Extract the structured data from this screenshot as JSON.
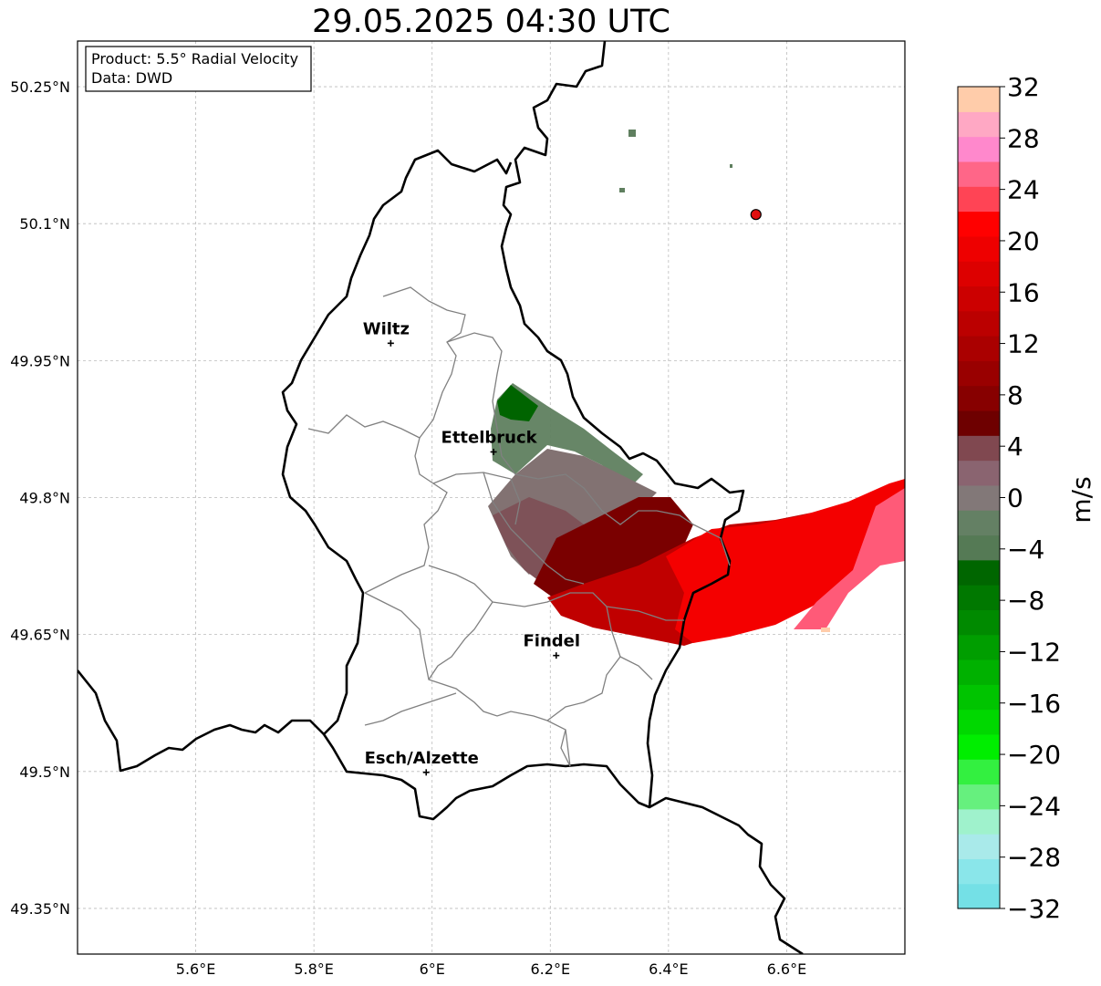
{
  "title": "29.05.2025 04:30 UTC",
  "infobox": {
    "line1": "Product: 5.5° Radial Velocity",
    "line2": "Data: DWD"
  },
  "map": {
    "lon_range": [
      5.4,
      6.8
    ],
    "lat_range": [
      49.3,
      50.3
    ],
    "lon_ticks": [
      {
        "value": 5.6,
        "label": "5.6°E"
      },
      {
        "value": 5.8,
        "label": "5.8°E"
      },
      {
        "value": 6.0,
        "label": "6°E"
      },
      {
        "value": 6.2,
        "label": "6.2°E"
      },
      {
        "value": 6.4,
        "label": "6.4°E"
      },
      {
        "value": 6.6,
        "label": "6.6°E"
      }
    ],
    "lat_ticks": [
      {
        "value": 50.25,
        "label": "50.25°N"
      },
      {
        "value": 50.1,
        "label": "50.1°N"
      },
      {
        "value": 49.95,
        "label": "49.95°N"
      },
      {
        "value": 49.8,
        "label": "49.8°N"
      },
      {
        "value": 49.65,
        "label": "49.65°N"
      },
      {
        "value": 49.5,
        "label": "49.5°N"
      },
      {
        "value": 49.35,
        "label": "49.35°N"
      }
    ],
    "cities": [
      {
        "name": "Wiltz",
        "lon": 5.93,
        "lat": 49.969
      },
      {
        "name": "Ettelbruck",
        "lon": 6.104,
        "lat": 49.85
      },
      {
        "name": "Findel",
        "lon": 6.21,
        "lat": 49.627
      },
      {
        "name": "Esch/Alzette",
        "lon": 5.99,
        "lat": 49.499
      }
    ],
    "radar_site": {
      "lon": 6.548,
      "lat": 50.11
    },
    "grid": true
  },
  "colorbar": {
    "label": "m/s",
    "min": -32,
    "max": 32,
    "step": 4,
    "tick_labels": [
      "32",
      "28",
      "24",
      "20",
      "16",
      "12",
      "8",
      "4",
      "0",
      "−4",
      "−8",
      "−12",
      "−16",
      "−20",
      "−24",
      "−28",
      "−32"
    ],
    "colors_bottom_to_top": [
      "#74e0e6",
      "#8ae6ea",
      "#a9eaea",
      "#9ff2cc",
      "#66f07e",
      "#33f040",
      "#00ee00",
      "#00d800",
      "#00c400",
      "#00b100",
      "#009e00",
      "#008a00",
      "#007800",
      "#006600",
      "#557a55",
      "#648064",
      "#827878",
      "#8a6470",
      "#804850",
      "#6e0000",
      "#870000",
      "#990000",
      "#aa0000",
      "#bb0000",
      "#cc0000",
      "#dd0000",
      "#ee0000",
      "#ff0000",
      "#ff4455",
      "#ff6688",
      "#ff88cc",
      "#ffa8c4",
      "#ffccaa"
    ]
  }
}
